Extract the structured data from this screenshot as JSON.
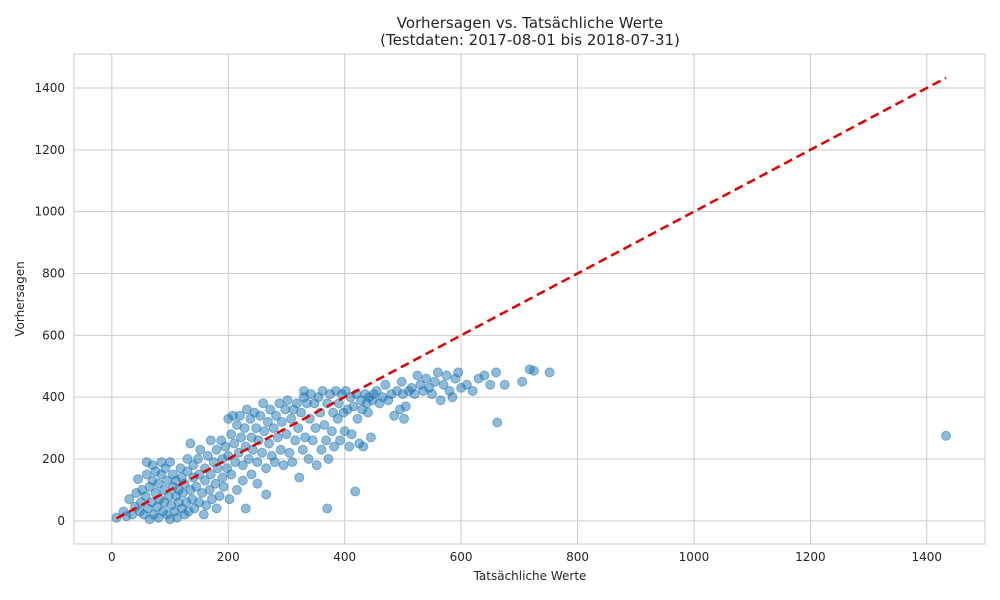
{
  "chart_data": {
    "type": "scatter",
    "title": "Vorhersagen vs. Tatsächliche Werte",
    "subtitle": "(Testdaten: 2017-08-01 bis 2018-07-31)",
    "xlabel": "Tatsächliche Werte",
    "ylabel": "Vorhersagen",
    "xlim": [
      -65,
      1500
    ],
    "ylim": [
      -75,
      1510
    ],
    "xticks": [
      0,
      200,
      400,
      600,
      800,
      1000,
      1200,
      1400
    ],
    "yticks": [
      0,
      200,
      400,
      600,
      800,
      1000,
      1200,
      1400
    ],
    "grid": true,
    "point_color": "#1f77b4",
    "reference_line": {
      "style": "dashed",
      "color": "#e00000",
      "from": [
        8,
        8
      ],
      "to": [
        1433,
        1433
      ]
    },
    "points": [
      [
        8,
        10
      ],
      [
        20,
        30
      ],
      [
        25,
        15
      ],
      [
        30,
        70
      ],
      [
        35,
        20
      ],
      [
        40,
        45
      ],
      [
        42,
        90
      ],
      [
        45,
        135
      ],
      [
        48,
        30
      ],
      [
        50,
        60
      ],
      [
        52,
        100
      ],
      [
        55,
        20
      ],
      [
        58,
        80
      ],
      [
        60,
        150
      ],
      [
        60,
        190
      ],
      [
        62,
        40
      ],
      [
        65,
        110
      ],
      [
        65,
        5
      ],
      [
        68,
        60
      ],
      [
        70,
        130
      ],
      [
        70,
        180
      ],
      [
        72,
        20
      ],
      [
        75,
        90
      ],
      [
        75,
        160
      ],
      [
        78,
        45
      ],
      [
        80,
        120
      ],
      [
        80,
        10
      ],
      [
        82,
        70
      ],
      [
        85,
        150
      ],
      [
        85,
        190
      ],
      [
        88,
        30
      ],
      [
        90,
        100
      ],
      [
        90,
        60
      ],
      [
        92,
        170
      ],
      [
        95,
        20
      ],
      [
        95,
        130
      ],
      [
        98,
        80
      ],
      [
        100,
        5
      ],
      [
        100,
        190
      ],
      [
        102,
        50
      ],
      [
        105,
        110
      ],
      [
        105,
        150
      ],
      [
        108,
        30
      ],
      [
        110,
        80
      ],
      [
        110,
        130
      ],
      [
        112,
        10
      ],
      [
        115,
        60
      ],
      [
        115,
        100
      ],
      [
        118,
        170
      ],
      [
        120,
        40
      ],
      [
        120,
        140
      ],
      [
        122,
        90
      ],
      [
        125,
        20
      ],
      [
        125,
        120
      ],
      [
        128,
        60
      ],
      [
        130,
        160
      ],
      [
        130,
        200
      ],
      [
        132,
        30
      ],
      [
        135,
        100
      ],
      [
        135,
        250
      ],
      [
        138,
        70
      ],
      [
        140,
        140
      ],
      [
        140,
        180
      ],
      [
        142,
        40
      ],
      [
        145,
        110
      ],
      [
        148,
        200
      ],
      [
        150,
        60
      ],
      [
        150,
        150
      ],
      [
        152,
        230
      ],
      [
        155,
        90
      ],
      [
        158,
        20
      ],
      [
        160,
        130
      ],
      [
        160,
        170
      ],
      [
        162,
        50
      ],
      [
        165,
        210
      ],
      [
        168,
        100
      ],
      [
        170,
        150
      ],
      [
        170,
        260
      ],
      [
        172,
        70
      ],
      [
        175,
        190
      ],
      [
        178,
        120
      ],
      [
        180,
        230
      ],
      [
        180,
        40
      ],
      [
        182,
        170
      ],
      [
        185,
        80
      ],
      [
        188,
        260
      ],
      [
        190,
        140
      ],
      [
        190,
        200
      ],
      [
        192,
        110
      ],
      [
        195,
        240
      ],
      [
        198,
        170
      ],
      [
        200,
        330
      ],
      [
        200,
        210
      ],
      [
        202,
        70
      ],
      [
        205,
        280
      ],
      [
        205,
        150
      ],
      [
        208,
        340
      ],
      [
        210,
        250
      ],
      [
        212,
        190
      ],
      [
        215,
        310
      ],
      [
        215,
        100
      ],
      [
        218,
        220
      ],
      [
        220,
        340
      ],
      [
        222,
        270
      ],
      [
        225,
        180
      ],
      [
        225,
        130
      ],
      [
        228,
        300
      ],
      [
        230,
        240
      ],
      [
        230,
        40
      ],
      [
        232,
        360
      ],
      [
        235,
        200
      ],
      [
        238,
        330
      ],
      [
        240,
        270
      ],
      [
        240,
        150
      ],
      [
        242,
        230
      ],
      [
        245,
        350
      ],
      [
        248,
        300
      ],
      [
        250,
        190
      ],
      [
        250,
        120
      ],
      [
        252,
        260
      ],
      [
        255,
        340
      ],
      [
        258,
        220
      ],
      [
        260,
        380
      ],
      [
        262,
        290
      ],
      [
        265,
        170
      ],
      [
        265,
        85
      ],
      [
        268,
        320
      ],
      [
        270,
        250
      ],
      [
        272,
        360
      ],
      [
        275,
        210
      ],
      [
        278,
        300
      ],
      [
        280,
        190
      ],
      [
        282,
        340
      ],
      [
        285,
        270
      ],
      [
        288,
        380
      ],
      [
        290,
        230
      ],
      [
        292,
        320
      ],
      [
        295,
        180
      ],
      [
        298,
        360
      ],
      [
        300,
        280
      ],
      [
        302,
        390
      ],
      [
        305,
        220
      ],
      [
        308,
        330
      ],
      [
        310,
        190
      ],
      [
        312,
        360
      ],
      [
        315,
        260
      ],
      [
        318,
        380
      ],
      [
        320,
        300
      ],
      [
        322,
        140
      ],
      [
        325,
        350
      ],
      [
        328,
        230
      ],
      [
        330,
        400
      ],
      [
        330,
        420
      ],
      [
        332,
        270
      ],
      [
        335,
        380
      ],
      [
        338,
        200
      ],
      [
        340,
        330
      ],
      [
        342,
        410
      ],
      [
        345,
        260
      ],
      [
        348,
        380
      ],
      [
        350,
        300
      ],
      [
        352,
        180
      ],
      [
        355,
        400
      ],
      [
        358,
        350
      ],
      [
        360,
        230
      ],
      [
        362,
        420
      ],
      [
        365,
        310
      ],
      [
        368,
        260
      ],
      [
        370,
        380
      ],
      [
        370,
        40
      ],
      [
        372,
        200
      ],
      [
        375,
        410
      ],
      [
        378,
        290
      ],
      [
        380,
        350
      ],
      [
        382,
        240
      ],
      [
        385,
        420
      ],
      [
        388,
        330
      ],
      [
        390,
        380
      ],
      [
        392,
        260
      ],
      [
        395,
        410
      ],
      [
        398,
        350
      ],
      [
        400,
        290
      ],
      [
        402,
        420
      ],
      [
        405,
        360
      ],
      [
        408,
        240
      ],
      [
        410,
        400
      ],
      [
        412,
        280
      ],
      [
        415,
        370
      ],
      [
        418,
        95
      ],
      [
        420,
        410
      ],
      [
        422,
        330
      ],
      [
        425,
        250
      ],
      [
        428,
        390
      ],
      [
        430,
        360
      ],
      [
        432,
        240
      ],
      [
        435,
        410
      ],
      [
        438,
        380
      ],
      [
        440,
        350
      ],
      [
        442,
        400
      ],
      [
        445,
        270
      ],
      [
        448,
        390
      ],
      [
        450,
        410
      ],
      [
        455,
        420
      ],
      [
        460,
        380
      ],
      [
        465,
        400
      ],
      [
        470,
        440
      ],
      [
        475,
        390
      ],
      [
        480,
        410
      ],
      [
        485,
        340
      ],
      [
        490,
        420
      ],
      [
        495,
        360
      ],
      [
        498,
        450
      ],
      [
        500,
        410
      ],
      [
        502,
        330
      ],
      [
        505,
        370
      ],
      [
        510,
        420
      ],
      [
        515,
        430
      ],
      [
        520,
        410
      ],
      [
        525,
        470
      ],
      [
        530,
        440
      ],
      [
        535,
        420
      ],
      [
        540,
        460
      ],
      [
        545,
        430
      ],
      [
        550,
        410
      ],
      [
        555,
        450
      ],
      [
        560,
        480
      ],
      [
        565,
        390
      ],
      [
        570,
        440
      ],
      [
        575,
        470
      ],
      [
        580,
        420
      ],
      [
        585,
        400
      ],
      [
        590,
        460
      ],
      [
        595,
        480
      ],
      [
        600,
        430
      ],
      [
        610,
        440
      ],
      [
        620,
        420
      ],
      [
        630,
        460
      ],
      [
        640,
        470
      ],
      [
        650,
        440
      ],
      [
        660,
        480
      ],
      [
        662,
        318
      ],
      [
        675,
        440
      ],
      [
        705,
        450
      ],
      [
        718,
        490
      ],
      [
        725,
        485
      ],
      [
        752,
        480
      ],
      [
        1433,
        275
      ]
    ]
  }
}
